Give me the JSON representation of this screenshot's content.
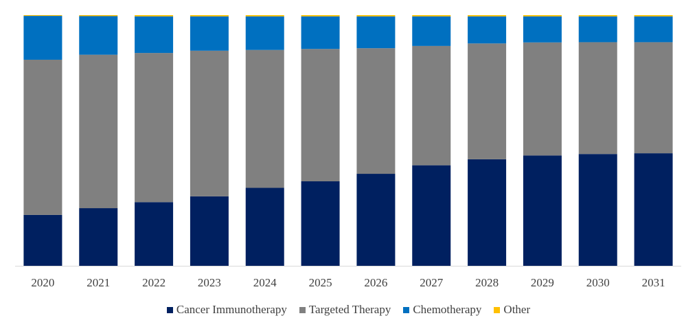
{
  "chart_data": {
    "type": "bar",
    "stacked": true,
    "normalized": true,
    "categories": [
      "2020",
      "2021",
      "2022",
      "2023",
      "2024",
      "2025",
      "2026",
      "2027",
      "2028",
      "2029",
      "2030",
      "2031"
    ],
    "series": [
      {
        "name": "Cancer Immunotherapy",
        "color": "#002060",
        "values": [
          20.3,
          23.0,
          25.4,
          27.7,
          31.1,
          33.7,
          36.7,
          40.1,
          42.5,
          44.0,
          44.6,
          44.9
        ]
      },
      {
        "name": "Targeted Therapy",
        "color": "#808080",
        "values": [
          61.9,
          61.2,
          59.5,
          58.1,
          55.0,
          52.8,
          50.1,
          47.6,
          46.2,
          45.1,
          44.6,
          44.3
        ]
      },
      {
        "name": "Chemotherapy",
        "color": "#0070C0",
        "values": [
          17.5,
          15.4,
          14.6,
          13.7,
          13.4,
          13.0,
          12.7,
          11.8,
          10.8,
          10.4,
          10.3,
          10.3
        ]
      },
      {
        "name": "Other",
        "color": "#FFC000",
        "values": [
          0.3,
          0.4,
          0.5,
          0.5,
          0.5,
          0.5,
          0.5,
          0.5,
          0.5,
          0.5,
          0.5,
          0.5
        ]
      }
    ],
    "ylim": [
      0,
      100
    ],
    "legend_position": "bottom",
    "grid": false,
    "title": "",
    "xlabel": "",
    "ylabel": ""
  }
}
